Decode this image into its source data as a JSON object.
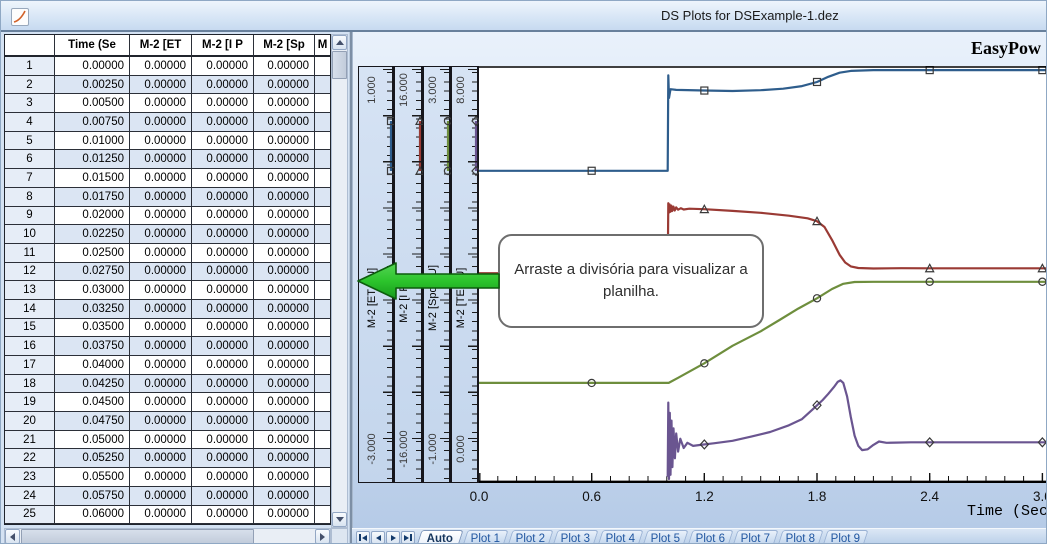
{
  "window": {
    "title": "DS Plots for DSExample-1.dez"
  },
  "icons": {
    "titlebar_icon": "plot-curve-icon"
  },
  "table": {
    "columns": [
      "",
      "Time (Se",
      "M-2 [ET",
      "M-2 [I P",
      "M-2 [Sp",
      "M"
    ],
    "rows": [
      [
        "1",
        "0.00000",
        "0.00000",
        "0.00000",
        "0.00000"
      ],
      [
        "2",
        "0.00250",
        "0.00000",
        "0.00000",
        "0.00000"
      ],
      [
        "3",
        "0.00500",
        "0.00000",
        "0.00000",
        "0.00000"
      ],
      [
        "4",
        "0.00750",
        "0.00000",
        "0.00000",
        "0.00000"
      ],
      [
        "5",
        "0.01000",
        "0.00000",
        "0.00000",
        "0.00000"
      ],
      [
        "6",
        "0.01250",
        "0.00000",
        "0.00000",
        "0.00000"
      ],
      [
        "7",
        "0.01500",
        "0.00000",
        "0.00000",
        "0.00000"
      ],
      [
        "8",
        "0.01750",
        "0.00000",
        "0.00000",
        "0.00000"
      ],
      [
        "9",
        "0.02000",
        "0.00000",
        "0.00000",
        "0.00000"
      ],
      [
        "10",
        "0.02250",
        "0.00000",
        "0.00000",
        "0.00000"
      ],
      [
        "11",
        "0.02500",
        "0.00000",
        "0.00000",
        "0.00000"
      ],
      [
        "12",
        "0.02750",
        "0.00000",
        "0.00000",
        "0.00000"
      ],
      [
        "13",
        "0.03000",
        "0.00000",
        "0.00000",
        "0.00000"
      ],
      [
        "14",
        "0.03250",
        "0.00000",
        "0.00000",
        "0.00000"
      ],
      [
        "15",
        "0.03500",
        "0.00000",
        "0.00000",
        "0.00000"
      ],
      [
        "16",
        "0.03750",
        "0.00000",
        "0.00000",
        "0.00000"
      ],
      [
        "17",
        "0.04000",
        "0.00000",
        "0.00000",
        "0.00000"
      ],
      [
        "18",
        "0.04250",
        "0.00000",
        "0.00000",
        "0.00000"
      ],
      [
        "19",
        "0.04500",
        "0.00000",
        "0.00000",
        "0.00000"
      ],
      [
        "20",
        "0.04750",
        "0.00000",
        "0.00000",
        "0.00000"
      ],
      [
        "21",
        "0.05000",
        "0.00000",
        "0.00000",
        "0.00000"
      ],
      [
        "22",
        "0.05250",
        "0.00000",
        "0.00000",
        "0.00000"
      ],
      [
        "23",
        "0.05500",
        "0.00000",
        "0.00000",
        "0.00000"
      ],
      [
        "24",
        "0.05750",
        "0.00000",
        "0.00000",
        "0.00000"
      ],
      [
        "25",
        "0.06000",
        "0.00000",
        "0.00000",
        "0.00000"
      ]
    ]
  },
  "callout": {
    "line1": "Arraste a divisória para visualizar a",
    "line2": "planilha."
  },
  "tabs": {
    "active": "Auto",
    "items": [
      "Auto",
      "Plot 1",
      "Plot 2",
      "Plot 3",
      "Plot 4",
      "Plot 5",
      "Plot 6",
      "Plot 7",
      "Plot 8",
      "Plot 9"
    ]
  },
  "chart_data": {
    "type": "line",
    "title": "EasyPow",
    "xlabel": "Time (Sec",
    "xlim": [
      0,
      3.03
    ],
    "xticks": [
      0,
      0.6,
      1.2,
      1.8,
      2.4,
      3.0
    ],
    "xtick_labels": [
      "0.0",
      "0.6",
      "1.2",
      "1.8",
      "2.4",
      "3.0"
    ],
    "grid": false,
    "legend_position": "left-strips",
    "marker_times": [
      0.6,
      1.2,
      1.8,
      2.4,
      3.0
    ],
    "series": [
      {
        "name": "M-2 [ET PU]",
        "color": "#2e5d8c",
        "marker": "square",
        "axis_top_label": "1.000",
        "axis_bottom_label": "-3.000",
        "ylim": [
          -3,
          1
        ],
        "marker_t": [
          0.6,
          1.2,
          1.8,
          2.4,
          3.0
        ],
        "points": [
          [
            0,
            -0.005
          ],
          [
            0.6,
            -0.005
          ],
          [
            1.005,
            -0.005
          ],
          [
            1.008,
            0.92
          ],
          [
            1.012,
            0.7
          ],
          [
            1.02,
            0.785
          ],
          [
            1.05,
            0.778
          ],
          [
            1.2,
            0.772
          ],
          [
            1.35,
            0.768
          ],
          [
            1.5,
            0.775
          ],
          [
            1.62,
            0.79
          ],
          [
            1.72,
            0.815
          ],
          [
            1.8,
            0.855
          ],
          [
            1.86,
            0.905
          ],
          [
            1.92,
            0.945
          ],
          [
            1.98,
            0.962
          ],
          [
            2.1,
            0.97
          ],
          [
            2.4,
            0.97
          ],
          [
            3.03,
            0.97
          ]
        ]
      },
      {
        "name": "M-2 [I PU]",
        "color": "#9a3a34",
        "marker": "triangle",
        "axis_top_label": "16.000",
        "axis_bottom_label": "-16.000",
        "ylim": [
          -16,
          16
        ],
        "marker_t": [
          0.6,
          1.2,
          1.8,
          2.4,
          3.0
        ],
        "points": [
          [
            0,
            0.02
          ],
          [
            0.6,
            0.02
          ],
          [
            1.005,
            0.02
          ],
          [
            1.008,
            5.45
          ],
          [
            1.011,
            4.72
          ],
          [
            1.015,
            5.35
          ],
          [
            1.019,
            4.78
          ],
          [
            1.024,
            5.26
          ],
          [
            1.029,
            4.84
          ],
          [
            1.035,
            5.18
          ],
          [
            1.042,
            4.88
          ],
          [
            1.05,
            5.12
          ],
          [
            1.06,
            4.94
          ],
          [
            1.075,
            5.06
          ],
          [
            1.09,
            4.96
          ],
          [
            1.12,
            5.02
          ],
          [
            1.2,
            4.98
          ],
          [
            1.35,
            4.85
          ],
          [
            1.5,
            4.7
          ],
          [
            1.65,
            4.48
          ],
          [
            1.75,
            4.28
          ],
          [
            1.8,
            4.05
          ],
          [
            1.84,
            3.6
          ],
          [
            1.88,
            2.6
          ],
          [
            1.92,
            1.45
          ],
          [
            1.95,
            0.85
          ],
          [
            1.98,
            0.55
          ],
          [
            2.02,
            0.43
          ],
          [
            2.1,
            0.39
          ],
          [
            2.25,
            0.41
          ],
          [
            2.4,
            0.4
          ],
          [
            3.03,
            0.4
          ]
        ]
      },
      {
        "name": "M-2 [Spd PU]",
        "color": "#6e8e3d",
        "marker": "circle",
        "axis_top_label": "3.000",
        "axis_bottom_label": "-1.000",
        "ylim": [
          -1,
          3
        ],
        "marker_t": [
          0.6,
          1.2,
          1.8,
          2.4,
          3.0
        ],
        "points": [
          [
            0,
            -0.06
          ],
          [
            0.6,
            -0.06
          ],
          [
            1.01,
            -0.06
          ],
          [
            1.06,
            -0.01
          ],
          [
            1.2,
            0.13
          ],
          [
            1.35,
            0.3
          ],
          [
            1.5,
            0.44
          ],
          [
            1.6,
            0.55
          ],
          [
            1.7,
            0.66
          ],
          [
            1.8,
            0.76
          ],
          [
            1.88,
            0.85
          ],
          [
            1.94,
            0.9
          ],
          [
            2.0,
            0.918
          ],
          [
            2.1,
            0.92
          ],
          [
            2.4,
            0.92
          ],
          [
            3.03,
            0.92
          ]
        ]
      },
      {
        "name": "M-2 [TE PU]",
        "color": "#6a5590",
        "marker": "diamond",
        "axis_top_label": "8.000",
        "axis_bottom_label": "0.000",
        "ylim": [
          0,
          8
        ],
        "marker_t": [
          1.2,
          1.8,
          2.4,
          3.0
        ],
        "points": [
          [
            1.005,
            0.06
          ],
          [
            1.008,
            1.5
          ],
          [
            1.012,
            0.02
          ],
          [
            1.016,
            1.3
          ],
          [
            1.02,
            0.1
          ],
          [
            1.025,
            1.15
          ],
          [
            1.03,
            0.25
          ],
          [
            1.036,
            1.0
          ],
          [
            1.043,
            0.42
          ],
          [
            1.05,
            0.9
          ],
          [
            1.06,
            0.55
          ],
          [
            1.072,
            0.8
          ],
          [
            1.09,
            0.62
          ],
          [
            1.11,
            0.72
          ],
          [
            1.14,
            0.66
          ],
          [
            1.18,
            0.68
          ],
          [
            1.25,
            0.71
          ],
          [
            1.35,
            0.76
          ],
          [
            1.45,
            0.84
          ],
          [
            1.55,
            0.93
          ],
          [
            1.65,
            1.06
          ],
          [
            1.72,
            1.18
          ],
          [
            1.78,
            1.38
          ],
          [
            1.83,
            1.55
          ],
          [
            1.86,
            1.67
          ],
          [
            1.89,
            1.8
          ],
          [
            1.91,
            1.9
          ],
          [
            1.925,
            1.93
          ],
          [
            1.94,
            1.88
          ],
          [
            1.96,
            1.62
          ],
          [
            1.98,
            1.22
          ],
          [
            2.0,
            0.86
          ],
          [
            2.02,
            0.66
          ],
          [
            2.04,
            0.58
          ],
          [
            2.07,
            0.595
          ],
          [
            2.1,
            0.68
          ],
          [
            2.13,
            0.745
          ],
          [
            2.17,
            0.72
          ],
          [
            2.22,
            0.725
          ],
          [
            2.3,
            0.73
          ],
          [
            2.6,
            0.73
          ],
          [
            3.03,
            0.73
          ]
        ]
      }
    ]
  }
}
